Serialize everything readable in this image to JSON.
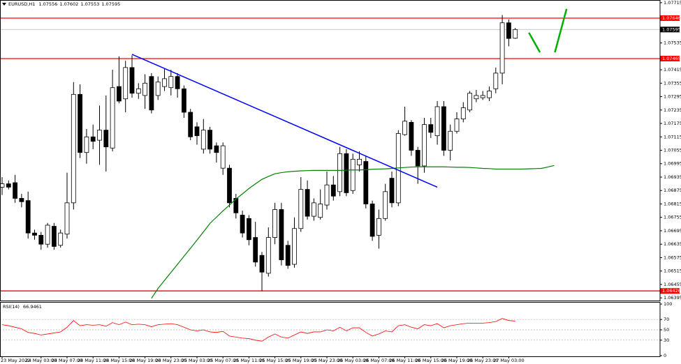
{
  "chart_data": {
    "type": "candlestick",
    "symbol": "EURUSD,H1",
    "categories": [
      "23 May 2022",
      null,
      null,
      null,
      null,
      null,
      "24 May 03:00",
      null,
      null,
      null,
      "24 May 07:00",
      null,
      null,
      null,
      "24 May 11:00",
      null,
      null,
      null,
      "24 May 15:00",
      null,
      null,
      null,
      "24 May 19:00",
      null,
      null,
      null,
      "24 May 23:00",
      null,
      null,
      null,
      "25 May 03:00",
      null,
      null,
      null,
      "25 May 07:00",
      null,
      null,
      null,
      "25 May 11:00",
      null,
      null,
      null,
      "25 May 15:00",
      null,
      null,
      null,
      "25 May 19:00",
      null,
      null,
      null,
      "25 May 23:00",
      null,
      null,
      null,
      "26 May 03:00",
      null,
      null,
      null,
      "26 May 07:00",
      null,
      null,
      null,
      "26 May 11:00",
      null,
      null,
      null,
      "26 May 15:00",
      null,
      null,
      null,
      "26 May 19:00",
      null,
      null,
      null,
      "26 May 23:00",
      null,
      null,
      null,
      "27 May 03:00",
      null,
      null,
      null,
      null,
      null,
      null,
      null
    ],
    "ohlc": {
      "open": [
        1.0689,
        1.06905,
        1.0691,
        1.0684,
        1.0683,
        1.06685,
        1.06675,
        1.06635,
        1.06715,
        1.0663,
        1.0668,
        1.0682,
        1.07305,
        1.07045,
        1.07115,
        1.071,
        1.07145,
        1.07065,
        1.0734,
        1.07285,
        1.07425,
        1.0731,
        1.073,
        1.07385,
        1.073,
        1.0734,
        1.07335,
        1.07385,
        1.0733,
        1.07225,
        1.0716,
        1.0706,
        1.07145,
        1.07075,
        1.06975,
        1.06975,
        1.0684,
        1.06765,
        1.0675,
        1.06665,
        1.06585,
        1.06505,
        1.06665,
        1.0679,
        1.0663,
        1.06545,
        1.06705,
        1.0688,
        1.0676,
        1.06755,
        1.0681,
        1.069,
        1.0687,
        1.0704,
        1.06875,
        1.0699,
        1.07005,
        1.06815,
        1.06675,
        1.0675,
        1.0693,
        1.0682,
        1.07125,
        1.0718,
        1.07055,
        1.06985,
        1.0717,
        1.0712,
        1.0725,
        1.07055,
        1.0714,
        1.07195,
        1.07235,
        1.07285,
        1.0729,
        1.0729,
        1.0733,
        1.074,
        1.07625,
        1.07556,
        null,
        null,
        null,
        null,
        null,
        null
      ],
      "high": [
        1.06935,
        1.0692,
        1.06945,
        1.0686,
        1.0687,
        1.067,
        1.0669,
        1.0673,
        1.0673,
        1.067,
        1.06955,
        1.0736,
        1.0735,
        1.0715,
        1.0717,
        1.07255,
        1.073,
        1.07415,
        1.07475,
        1.07455,
        1.0748,
        1.07355,
        1.07395,
        1.074,
        1.07385,
        1.0742,
        1.07415,
        1.074,
        1.07345,
        1.0724,
        1.0718,
        1.07195,
        1.0716,
        1.0709,
        1.0709,
        1.0699,
        1.0686,
        1.06785,
        1.06765,
        1.06735,
        1.066,
        1.0671,
        1.0682,
        1.0682,
        1.0665,
        1.06755,
        1.06935,
        1.0692,
        1.0684,
        1.0688,
        1.0696,
        1.0694,
        1.0707,
        1.0706,
        1.0704,
        1.0705,
        1.0703,
        1.0683,
        1.0679,
        1.06905,
        1.0696,
        1.07145,
        1.0725,
        1.0719,
        1.0707,
        1.072,
        1.072,
        1.07275,
        1.07275,
        1.0717,
        1.07225,
        1.0727,
        1.0732,
        1.07325,
        1.0732,
        1.0734,
        1.07425,
        1.0766,
        1.0764,
        1.07602,
        null,
        null,
        null,
        null,
        null,
        null
      ],
      "low": [
        1.06855,
        1.0688,
        1.0682,
        1.068,
        1.0666,
        1.06655,
        1.0661,
        1.0662,
        1.0661,
        1.0662,
        1.0666,
        1.0679,
        1.0702,
        1.06995,
        1.0706,
        1.0699,
        1.0696,
        1.0705,
        1.07265,
        1.07225,
        1.0729,
        1.07285,
        1.0724,
        1.0722,
        1.0728,
        1.0732,
        1.073,
        1.0729,
        1.072,
        1.071,
        1.0708,
        1.0704,
        1.0704,
        1.07,
        1.06945,
        1.068,
        1.0675,
        1.06665,
        1.0663,
        1.06535,
        1.06425,
        1.0649,
        1.06635,
        1.0654,
        1.06525,
        1.0653,
        1.0669,
        1.06745,
        1.0674,
        1.06745,
        1.0679,
        1.0683,
        1.0685,
        1.0685,
        1.0686,
        1.0696,
        1.06795,
        1.0665,
        1.06615,
        1.0674,
        1.068,
        1.06805,
        1.0712,
        1.0703,
        1.06905,
        1.06955,
        1.0711,
        1.0708,
        1.0703,
        1.0701,
        1.0713,
        1.0718,
        1.07225,
        1.0727,
        1.0728,
        1.07275,
        1.0731,
        1.0735,
        1.0752,
        1.07553,
        null,
        null,
        null,
        null,
        null,
        null
      ],
      "close": [
        1.06905,
        1.0689,
        1.0684,
        1.06825,
        1.06685,
        1.06675,
        1.06635,
        1.0672,
        1.06625,
        1.06685,
        1.0682,
        1.07305,
        1.07045,
        1.07115,
        1.07095,
        1.07145,
        1.0707,
        1.07335,
        1.07275,
        1.07425,
        1.0731,
        1.0733,
        1.07355,
        1.07235,
        1.0736,
        1.07375,
        1.07385,
        1.0733,
        1.07225,
        1.07115,
        1.0712,
        1.07145,
        1.0706,
        1.07045,
        1.07075,
        1.0682,
        1.06775,
        1.06685,
        1.06655,
        1.06555,
        1.0651,
        1.06665,
        1.0679,
        1.06565,
        1.0654,
        1.06705,
        1.0688,
        1.0676,
        1.0682,
        1.06815,
        1.069,
        1.0685,
        1.0704,
        1.06865,
        1.07015,
        1.07015,
        1.06815,
        1.0667,
        1.0675,
        1.0687,
        1.0682,
        1.0713,
        1.07185,
        1.07055,
        1.06985,
        1.0717,
        1.07135,
        1.0725,
        1.07055,
        1.0714,
        1.07195,
        1.07245,
        1.0731,
        1.073,
        1.073,
        1.0732,
        1.074,
        1.07625,
        1.07555,
        1.07595,
        null,
        null,
        null,
        null,
        null,
        null
      ]
    },
    "ma": {
      "color": "#008000",
      "values": [
        null,
        null,
        null,
        null,
        null,
        null,
        null,
        null,
        null,
        null,
        null,
        null,
        null,
        null,
        null,
        null,
        null,
        null,
        null,
        null,
        null,
        null,
        null,
        1.06393,
        1.06437,
        1.06473,
        1.06509,
        1.06545,
        1.06581,
        1.06617,
        1.06653,
        1.0669,
        1.06728,
        1.06756,
        1.06784,
        1.0681,
        1.06837,
        1.0686,
        1.06884,
        1.06905,
        1.06925,
        1.06938,
        1.0695,
        1.06955,
        1.06959,
        1.06961,
        1.06963,
        1.06964,
        1.06965,
        1.06965,
        1.06965,
        1.06965,
        1.06965,
        1.06966,
        1.06967,
        1.06967,
        1.06968,
        1.0697,
        1.06971,
        1.06972,
        1.06974,
        1.06976,
        1.06978,
        1.0698,
        1.06981,
        1.06981,
        1.06981,
        1.06981,
        1.06981,
        1.0698,
        1.06979,
        1.06979,
        1.06978,
        1.06976,
        1.06974,
        1.06973,
        1.06971,
        1.06971,
        1.06971,
        1.06971,
        1.06971,
        1.06972,
        1.06973,
        1.06974,
        1.0698,
        1.06987
      ]
    },
    "ylim": [
      1.06383,
      1.07727
    ],
    "yticks": [
      1.07715,
      1.07535,
      1.07415,
      1.07355,
      1.07295,
      1.07235,
      1.07175,
      1.07115,
      1.07055,
      1.06995,
      1.06935,
      1.06875,
      1.06815,
      1.06755,
      1.06695,
      1.06635,
      1.06575,
      1.06515,
      1.06455,
      1.06395
    ],
    "hlines": [
      {
        "value": 1.07646,
        "color": "#ff0000"
      },
      {
        "value": 1.07465,
        "color": "#ff0000"
      },
      {
        "value": 1.06426,
        "color": "#ff0000"
      }
    ],
    "lines": [
      {
        "color": "#0000ff",
        "x": [
          20,
          67
        ],
        "values": [
          1.07484,
          1.0689
        ]
      },
      {
        "color": "#00b000",
        "x": [
          81.1,
          82.8
        ],
        "values": [
          1.07581,
          1.07493
        ]
      },
      {
        "color": "#00b000",
        "x": [
          85.1,
          86.9
        ],
        "values": [
          1.07493,
          1.07687
        ]
      }
    ],
    "rsi": {
      "title": "RSI(14)",
      "color": "#ff0000",
      "ylim": [
        0,
        100
      ],
      "yticks": [
        0,
        30,
        50,
        70,
        100
      ],
      "values": [
        60,
        58,
        55,
        52,
        45,
        43,
        40,
        42,
        44,
        46,
        55,
        68,
        58,
        60,
        59,
        60,
        57,
        64,
        60,
        65,
        60,
        61,
        60,
        56,
        60,
        61,
        62,
        60,
        55,
        50,
        48,
        50,
        46,
        45,
        47,
        38,
        36,
        34,
        33,
        30,
        28,
        36,
        42,
        36,
        34,
        40,
        46,
        43,
        46,
        46,
        50,
        48,
        55,
        48,
        54,
        54,
        45,
        38,
        42,
        48,
        46,
        58,
        60,
        55,
        52,
        60,
        58,
        62,
        54,
        58,
        60,
        62,
        63,
        63,
        63,
        64,
        66,
        72,
        68,
        66.9461,
        null,
        null,
        null,
        null,
        null,
        null
      ]
    }
  }
}
